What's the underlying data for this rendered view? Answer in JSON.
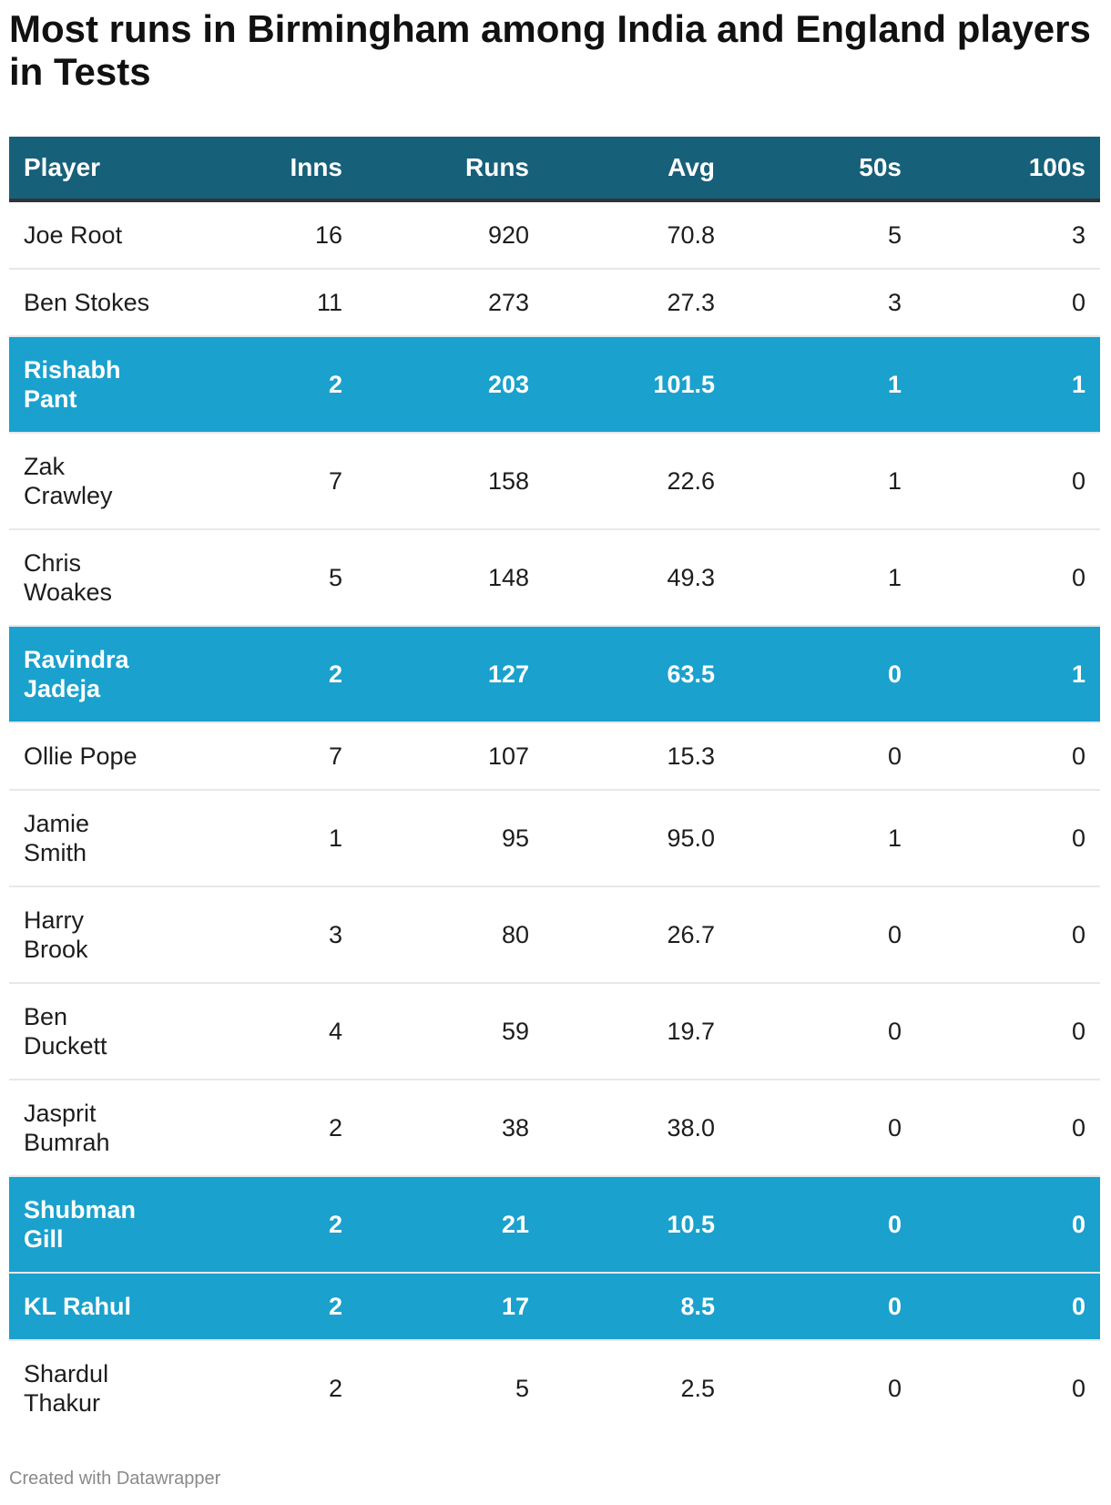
{
  "title": "Most runs in Birmingham among India and England players in Tests",
  "colors": {
    "header_bg": "#17607a",
    "highlight_bg": "#1aa1cd",
    "highlight_meaning": "India players"
  },
  "columns": [
    "Player",
    "Inns",
    "Runs",
    "Avg",
    "50s",
    "100s"
  ],
  "rows": [
    {
      "player": "Joe Root",
      "inns": "16",
      "runs": "920",
      "avg": "70.8",
      "fifties": "5",
      "hundreds": "3",
      "highlight": false
    },
    {
      "player": "Ben Stokes",
      "inns": "11",
      "runs": "273",
      "avg": "27.3",
      "fifties": "3",
      "hundreds": "0",
      "highlight": false
    },
    {
      "player": "Rishabh\nPant",
      "inns": "2",
      "runs": "203",
      "avg": "101.5",
      "fifties": "1",
      "hundreds": "1",
      "highlight": true
    },
    {
      "player": "Zak\nCrawley",
      "inns": "7",
      "runs": "158",
      "avg": "22.6",
      "fifties": "1",
      "hundreds": "0",
      "highlight": false
    },
    {
      "player": "Chris\nWoakes",
      "inns": "5",
      "runs": "148",
      "avg": "49.3",
      "fifties": "1",
      "hundreds": "0",
      "highlight": false
    },
    {
      "player": "Ravindra\nJadeja",
      "inns": "2",
      "runs": "127",
      "avg": "63.5",
      "fifties": "0",
      "hundreds": "1",
      "highlight": true
    },
    {
      "player": "Ollie Pope",
      "inns": "7",
      "runs": "107",
      "avg": "15.3",
      "fifties": "0",
      "hundreds": "0",
      "highlight": false
    },
    {
      "player": "Jamie\nSmith",
      "inns": "1",
      "runs": "95",
      "avg": "95.0",
      "fifties": "1",
      "hundreds": "0",
      "highlight": false
    },
    {
      "player": "Harry\nBrook",
      "inns": "3",
      "runs": "80",
      "avg": "26.7",
      "fifties": "0",
      "hundreds": "0",
      "highlight": false
    },
    {
      "player": "Ben\nDuckett",
      "inns": "4",
      "runs": "59",
      "avg": "19.7",
      "fifties": "0",
      "hundreds": "0",
      "highlight": false
    },
    {
      "player": "Jasprit\nBumrah",
      "inns": "2",
      "runs": "38",
      "avg": "38.0",
      "fifties": "0",
      "hundreds": "0",
      "highlight": false
    },
    {
      "player": "Shubman\nGill",
      "inns": "2",
      "runs": "21",
      "avg": "10.5",
      "fifties": "0",
      "hundreds": "0",
      "highlight": true
    },
    {
      "player": "KL Rahul",
      "inns": "2",
      "runs": "17",
      "avg": "8.5",
      "fifties": "0",
      "hundreds": "0",
      "highlight": true
    },
    {
      "player": "Shardul\nThakur",
      "inns": "2",
      "runs": "5",
      "avg": "2.5",
      "fifties": "0",
      "hundreds": "0",
      "highlight": false
    }
  ],
  "footer": "Created with Datawrapper"
}
